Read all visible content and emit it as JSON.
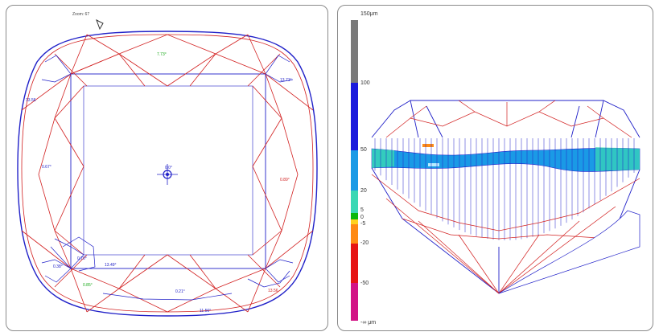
{
  "left_view": {
    "zoom_text": "Zoom: 67",
    "labels": {
      "top_center": "7.73°",
      "right_upper": "13.71°",
      "left_upper": "13.56",
      "left_mid": "0.67°",
      "right_mid": "0.89°",
      "center": "0.0°",
      "bl_1": "0.38°",
      "bl_2": "0.70°",
      "bl_3": "13.49°",
      "bl_green": "0.85°",
      "bottom_center": "0.21°",
      "bottom_right": "13.56",
      "bottom_low": "11.56°"
    }
  },
  "right_view": {
    "scale_labels": [
      "150μm",
      "100",
      "50",
      "20",
      "5",
      "0",
      "-5",
      "-20",
      "-50",
      "-∞ μm"
    ],
    "scale_colors": [
      "#7a7a7a",
      "#1a1adc",
      "#1a9ae6",
      "#3ad8b4",
      "#0ab80a",
      "#ffd21e",
      "#ff8a14",
      "#e61414",
      "#d21486"
    ]
  },
  "colors": {
    "outline_blue": "#2020c8",
    "facet_red": "#d22020",
    "label_green": "#18a818"
  }
}
